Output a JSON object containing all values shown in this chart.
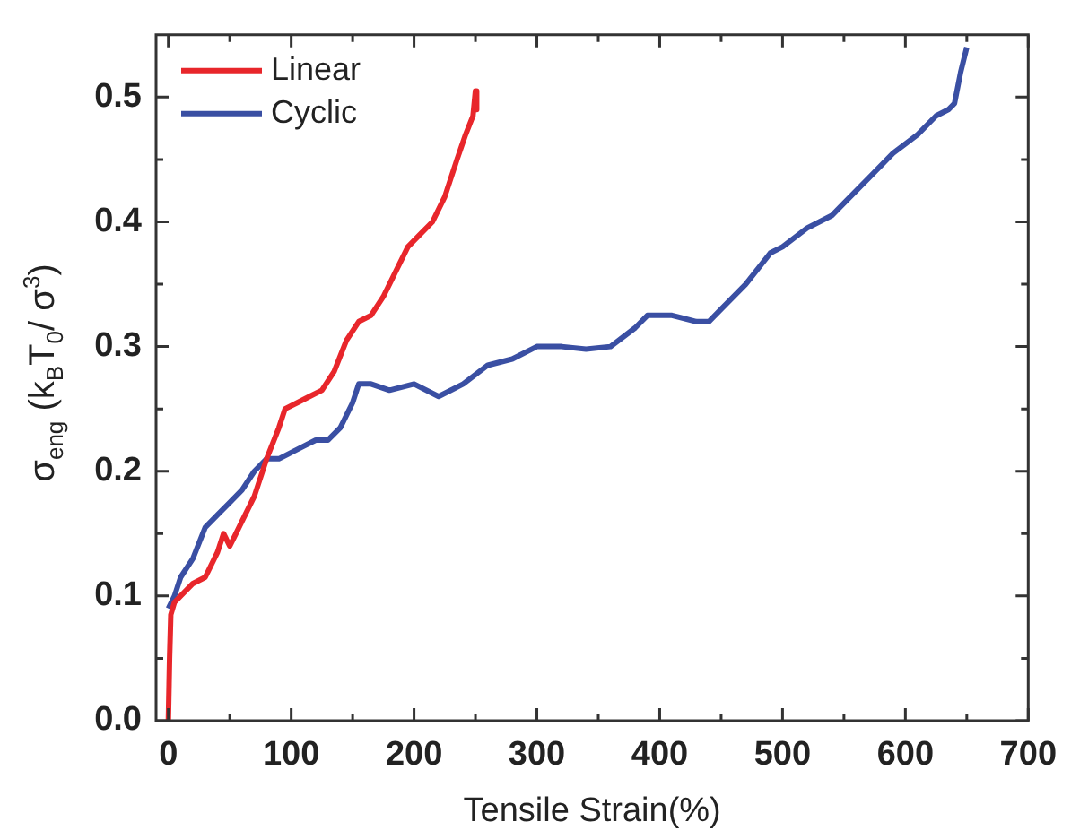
{
  "chart_data": {
    "type": "line",
    "xlabel": "Tensile Strain(%)",
    "ylabel": "σ$_{eng}$ (k$_{B}$T$_{0}$/ σ$^{3}$)",
    "xlim": [
      -10,
      700
    ],
    "ylim": [
      0,
      0.55
    ],
    "xticks": [
      0,
      {
        "value": 50,
        "label": null
      },
      100,
      {
        "value": 150,
        "label": null
      },
      200,
      {
        "value": 250,
        "label": null
      },
      300,
      {
        "value": 350,
        "label": null
      },
      400,
      {
        "value": 450,
        "label": null
      },
      500,
      {
        "value": 550,
        "label": null
      },
      600,
      {
        "value": 650,
        "label": null
      },
      700
    ],
    "yticks": [
      {
        "value": 0,
        "label": "0.0"
      },
      {
        "value": 0.05,
        "label": null
      },
      0.1,
      {
        "value": 0.15,
        "label": null
      },
      0.2,
      {
        "value": 0.25,
        "label": null
      },
      0.3,
      {
        "value": 0.35,
        "label": null
      },
      0.4,
      {
        "value": 0.45,
        "label": null
      },
      0.5
    ],
    "legend": "top left",
    "grid": false,
    "marker": "none",
    "line_style": "solid",
    "series": [
      {
        "name": "Linear",
        "color": "#e8262b",
        "x": [
          0,
          1,
          2,
          5,
          10,
          20,
          30,
          40,
          45,
          50,
          55,
          60,
          70,
          80,
          90,
          95,
          105,
          115,
          125,
          135,
          145,
          155,
          165,
          175,
          185,
          195,
          205,
          215,
          225,
          235,
          242,
          248,
          250,
          251
        ],
        "values": [
          0,
          0.05,
          0.085,
          0.095,
          0.1,
          0.11,
          0.115,
          0.135,
          0.15,
          0.14,
          0.15,
          0.16,
          0.18,
          0.21,
          0.235,
          0.25,
          0.255,
          0.26,
          0.265,
          0.28,
          0.305,
          0.32,
          0.325,
          0.34,
          0.36,
          0.38,
          0.39,
          0.4,
          0.42,
          0.45,
          0.47,
          0.485,
          0.505,
          0.49
        ]
      },
      {
        "name": "Cyclic",
        "color": "#3a4fa3",
        "x": [
          0,
          5,
          10,
          20,
          30,
          40,
          50,
          60,
          70,
          80,
          90,
          100,
          110,
          120,
          130,
          140,
          150,
          155,
          165,
          180,
          200,
          220,
          240,
          260,
          280,
          300,
          320,
          340,
          360,
          380,
          390,
          410,
          430,
          440,
          450,
          470,
          490,
          500,
          520,
          540,
          550,
          570,
          590,
          610,
          625,
          635,
          640,
          645,
          650
        ],
        "values": [
          0.09,
          0.1,
          0.115,
          0.13,
          0.155,
          0.165,
          0.175,
          0.185,
          0.2,
          0.21,
          0.21,
          0.215,
          0.22,
          0.225,
          0.225,
          0.235,
          0.255,
          0.27,
          0.27,
          0.265,
          0.27,
          0.26,
          0.27,
          0.285,
          0.29,
          0.3,
          0.3,
          0.298,
          0.3,
          0.315,
          0.325,
          0.325,
          0.32,
          0.32,
          0.33,
          0.35,
          0.375,
          0.38,
          0.395,
          0.405,
          0.415,
          0.435,
          0.455,
          0.47,
          0.485,
          0.49,
          0.495,
          0.52,
          0.54
        ]
      }
    ]
  }
}
